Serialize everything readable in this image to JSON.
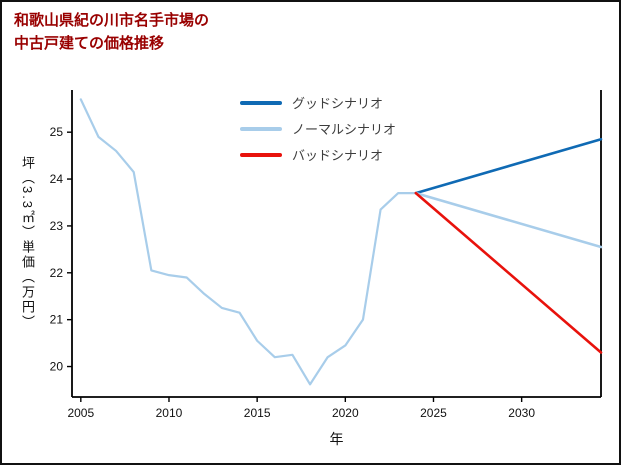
{
  "title": {
    "line1": "和歌山県紀の川市名手市場の",
    "line2": "中古戸建ての価格推移"
  },
  "colors": {
    "title": "#990000",
    "axis": "#000000",
    "tick_text": "#111111",
    "legend_text": "#3d3d3d",
    "good": "#0f6ab4",
    "normal": "#a8cdea",
    "bad": "#e8120c"
  },
  "chart_data": {
    "type": "line",
    "title": "和歌山県紀の川市名手市場の中古戸建ての価格推移",
    "xlabel": "年",
    "ylabel": "坪（3.3㎡）単価（万円）",
    "xlim": [
      2004.5,
      2034.5
    ],
    "ylim": [
      19.35,
      25.9
    ],
    "xticks": [
      2005,
      2010,
      2015,
      2020,
      2025,
      2030
    ],
    "yticks": [
      20,
      21,
      22,
      23,
      24,
      25
    ],
    "grid": false,
    "legend_position": "upper center",
    "series": [
      {
        "id": "historical",
        "label": "",
        "color": "#a8cdea",
        "in_legend": false,
        "x": [
          2005,
          2006,
          2007,
          2008,
          2009,
          2010,
          2011,
          2012,
          2013,
          2014,
          2015,
          2016,
          2017,
          2018,
          2019,
          2020,
          2021,
          2022,
          2023,
          2024
        ],
        "y": [
          25.7,
          24.9,
          24.6,
          24.15,
          22.05,
          21.95,
          21.9,
          21.55,
          21.25,
          21.15,
          20.55,
          20.2,
          20.25,
          19.62,
          20.2,
          20.45,
          21.0,
          23.35,
          23.7,
          23.7
        ]
      },
      {
        "id": "good-scenario",
        "label": "グッドシナリオ",
        "color": "#0f6ab4",
        "in_legend": true,
        "x": [
          2024,
          2034.5
        ],
        "y": [
          23.7,
          24.85
        ]
      },
      {
        "id": "normal-scenario",
        "label": "ノーマルシナリオ",
        "color": "#a8cdea",
        "in_legend": true,
        "x": [
          2024,
          2034.5
        ],
        "y": [
          23.7,
          22.55
        ]
      },
      {
        "id": "bad-scenario",
        "label": "バッドシナリオ",
        "color": "#e8120c",
        "in_legend": true,
        "x": [
          2024,
          2034.5
        ],
        "y": [
          23.7,
          20.3
        ]
      }
    ]
  }
}
